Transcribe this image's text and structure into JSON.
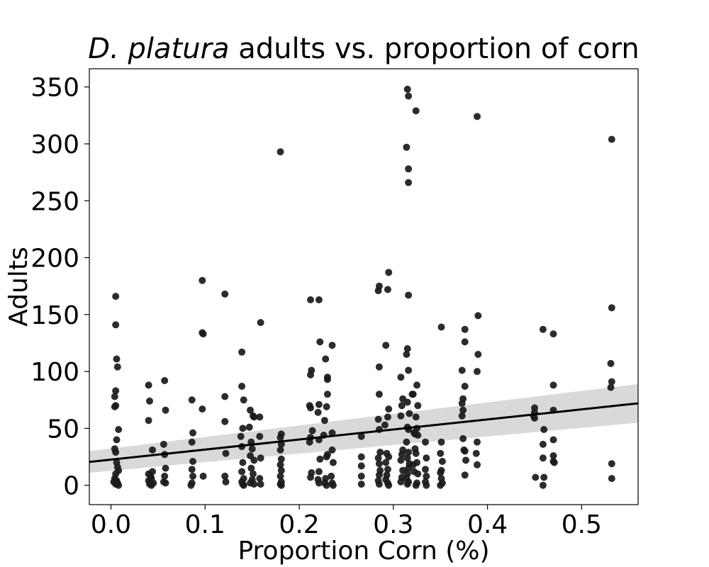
{
  "chart_data": {
    "type": "scatter",
    "title": {
      "species": "D. platura",
      "rest": " adults vs. proportion of corn"
    },
    "xlabel": "Proportion Corn (%)",
    "ylabel": "Adults",
    "xlim": [
      -0.023,
      0.56
    ],
    "ylim": [
      -17,
      366
    ],
    "xticks": [
      0.0,
      0.1,
      0.2,
      0.3,
      0.4,
      0.5
    ],
    "xtick_labels": [
      "0.0",
      "0.1",
      "0.2",
      "0.3",
      "0.4",
      "0.5"
    ],
    "yticks": [
      0,
      50,
      100,
      150,
      200,
      250,
      300,
      350
    ],
    "ytick_labels": [
      "0",
      "50",
      "100",
      "150",
      "200",
      "250",
      "300",
      "350"
    ],
    "grid": false,
    "regression": {
      "x": [
        -0.023,
        0.56
      ],
      "y": [
        20.5,
        72
      ],
      "ci_lower": [
        11,
        55
      ],
      "ci_upper": [
        30,
        89
      ]
    },
    "colors": {
      "points": "#1a1a1a",
      "line": "#000000",
      "band": "#d9d9d9"
    },
    "points": [
      [
        0.005,
        166
      ],
      [
        0.005,
        141
      ],
      [
        0.006,
        111
      ],
      [
        0.007,
        104
      ],
      [
        0.008,
        49
      ],
      [
        0.005,
        83
      ],
      [
        0.004,
        78
      ],
      [
        0.005,
        70
      ],
      [
        0.004,
        69
      ],
      [
        0.006,
        40
      ],
      [
        0.004,
        32
      ],
      [
        0.005,
        29
      ],
      [
        0.006,
        20
      ],
      [
        0.007,
        16
      ],
      [
        0.008,
        13
      ],
      [
        0.005,
        10
      ],
      [
        0.004,
        6
      ],
      [
        0.006,
        4
      ],
      [
        0.007,
        2
      ],
      [
        0.005,
        1
      ],
      [
        0.008,
        0
      ],
      [
        0.003,
        3
      ],
      [
        0.04,
        88
      ],
      [
        0.041,
        74
      ],
      [
        0.04,
        57
      ],
      [
        0.044,
        31
      ],
      [
        0.044,
        12
      ],
      [
        0.04,
        10
      ],
      [
        0.042,
        8
      ],
      [
        0.043,
        6
      ],
      [
        0.04,
        4
      ],
      [
        0.045,
        2
      ],
      [
        0.043,
        0
      ],
      [
        0.041,
        1
      ],
      [
        0.057,
        92
      ],
      [
        0.058,
        66
      ],
      [
        0.056,
        36
      ],
      [
        0.057,
        27
      ],
      [
        0.058,
        15
      ],
      [
        0.057,
        8
      ],
      [
        0.056,
        3
      ],
      [
        0.058,
        2
      ],
      [
        0.086,
        75
      ],
      [
        0.087,
        46
      ],
      [
        0.086,
        38
      ],
      [
        0.087,
        21
      ],
      [
        0.086,
        14
      ],
      [
        0.087,
        8
      ],
      [
        0.086,
        2
      ],
      [
        0.085,
        0
      ],
      [
        0.097,
        180
      ],
      [
        0.097,
        134
      ],
      [
        0.098,
        133
      ],
      [
        0.097,
        67
      ],
      [
        0.098,
        8
      ],
      [
        0.121,
        168
      ],
      [
        0.121,
        78
      ],
      [
        0.121,
        56
      ],
      [
        0.122,
        28
      ],
      [
        0.121,
        8
      ],
      [
        0.122,
        3
      ],
      [
        0.139,
        117
      ],
      [
        0.139,
        87
      ],
      [
        0.141,
        75
      ],
      [
        0.14,
        50
      ],
      [
        0.138,
        43
      ],
      [
        0.139,
        34
      ],
      [
        0.14,
        20
      ],
      [
        0.139,
        12
      ],
      [
        0.141,
        6
      ],
      [
        0.139,
        3
      ],
      [
        0.14,
        1
      ],
      [
        0.141,
        0
      ],
      [
        0.148,
        66
      ],
      [
        0.151,
        61
      ],
      [
        0.152,
        60
      ],
      [
        0.147,
        51
      ],
      [
        0.149,
        38
      ],
      [
        0.15,
        32
      ],
      [
        0.148,
        26
      ],
      [
        0.152,
        22
      ],
      [
        0.149,
        15
      ],
      [
        0.151,
        10
      ],
      [
        0.15,
        5
      ],
      [
        0.148,
        2
      ],
      [
        0.152,
        1
      ],
      [
        0.159,
        143
      ],
      [
        0.158,
        60
      ],
      [
        0.158,
        43
      ],
      [
        0.159,
        24
      ],
      [
        0.158,
        6
      ],
      [
        0.159,
        1
      ],
      [
        0.18,
        293
      ],
      [
        0.181,
        45
      ],
      [
        0.18,
        42
      ],
      [
        0.181,
        36
      ],
      [
        0.18,
        31
      ],
      [
        0.181,
        23
      ],
      [
        0.18,
        18
      ],
      [
        0.181,
        13
      ],
      [
        0.18,
        8
      ],
      [
        0.181,
        3
      ],
      [
        0.18,
        1
      ],
      [
        0.181,
        0
      ],
      [
        0.212,
        163
      ],
      [
        0.213,
        101
      ],
      [
        0.212,
        97
      ],
      [
        0.211,
        70
      ],
      [
        0.212,
        68
      ],
      [
        0.214,
        48
      ],
      [
        0.212,
        42
      ],
      [
        0.211,
        38
      ],
      [
        0.213,
        11
      ],
      [
        0.212,
        7
      ],
      [
        0.221,
        163
      ],
      [
        0.222,
        126
      ],
      [
        0.221,
        71
      ],
      [
        0.22,
        64
      ],
      [
        0.221,
        40
      ],
      [
        0.222,
        23
      ],
      [
        0.221,
        12
      ],
      [
        0.22,
        5
      ],
      [
        0.221,
        2
      ],
      [
        0.228,
        111
      ],
      [
        0.23,
        95
      ],
      [
        0.23,
        93
      ],
      [
        0.23,
        80
      ],
      [
        0.229,
        69
      ],
      [
        0.227,
        57
      ],
      [
        0.226,
        44
      ],
      [
        0.23,
        27
      ],
      [
        0.229,
        25
      ],
      [
        0.228,
        6
      ],
      [
        0.227,
        2
      ],
      [
        0.229,
        0
      ],
      [
        0.235,
        123
      ],
      [
        0.235,
        46
      ],
      [
        0.235,
        31
      ],
      [
        0.236,
        20
      ],
      [
        0.234,
        8
      ],
      [
        0.235,
        2
      ],
      [
        0.236,
        0
      ],
      [
        0.266,
        43
      ],
      [
        0.266,
        25
      ],
      [
        0.266,
        17
      ],
      [
        0.266,
        8
      ],
      [
        0.266,
        1
      ],
      [
        0.285,
        175
      ],
      [
        0.284,
        171
      ],
      [
        0.285,
        104
      ],
      [
        0.285,
        80
      ],
      [
        0.284,
        58
      ],
      [
        0.285,
        49
      ],
      [
        0.286,
        29
      ],
      [
        0.284,
        24
      ],
      [
        0.285,
        19
      ],
      [
        0.286,
        13
      ],
      [
        0.285,
        9
      ],
      [
        0.284,
        4
      ],
      [
        0.285,
        1
      ],
      [
        0.292,
        123
      ],
      [
        0.295,
        187
      ],
      [
        0.294,
        172
      ],
      [
        0.295,
        67
      ],
      [
        0.294,
        60
      ],
      [
        0.291,
        53
      ],
      [
        0.293,
        28
      ],
      [
        0.295,
        25
      ],
      [
        0.292,
        20
      ],
      [
        0.294,
        14
      ],
      [
        0.293,
        9
      ],
      [
        0.292,
        5
      ],
      [
        0.294,
        2
      ],
      [
        0.295,
        0
      ],
      [
        0.308,
        95
      ],
      [
        0.31,
        76
      ],
      [
        0.309,
        70
      ],
      [
        0.308,
        61
      ],
      [
        0.31,
        31
      ],
      [
        0.309,
        27
      ],
      [
        0.308,
        22
      ],
      [
        0.31,
        13
      ],
      [
        0.309,
        7
      ],
      [
        0.308,
        3
      ],
      [
        0.315,
        348
      ],
      [
        0.316,
        342
      ],
      [
        0.314,
        297
      ],
      [
        0.316,
        278
      ],
      [
        0.316,
        266
      ],
      [
        0.316,
        167
      ],
      [
        0.315,
        120
      ],
      [
        0.314,
        115
      ],
      [
        0.316,
        101
      ],
      [
        0.315,
        73
      ],
      [
        0.317,
        63
      ],
      [
        0.315,
        51
      ],
      [
        0.316,
        49
      ],
      [
        0.314,
        38
      ],
      [
        0.316,
        29
      ],
      [
        0.315,
        24
      ],
      [
        0.317,
        19
      ],
      [
        0.316,
        15
      ],
      [
        0.315,
        10
      ],
      [
        0.314,
        6
      ],
      [
        0.316,
        3
      ],
      [
        0.315,
        1
      ],
      [
        0.32,
        80
      ],
      [
        0.321,
        80
      ],
      [
        0.322,
        46
      ],
      [
        0.323,
        32
      ],
      [
        0.321,
        18
      ],
      [
        0.322,
        12
      ],
      [
        0.324,
        329
      ],
      [
        0.325,
        88
      ],
      [
        0.326,
        70
      ],
      [
        0.324,
        60
      ],
      [
        0.325,
        50
      ],
      [
        0.323,
        45
      ],
      [
        0.326,
        44
      ],
      [
        0.324,
        28
      ],
      [
        0.325,
        20
      ],
      [
        0.326,
        10
      ],
      [
        0.325,
        2
      ],
      [
        0.324,
        0
      ],
      [
        0.334,
        38
      ],
      [
        0.335,
        24
      ],
      [
        0.334,
        14
      ],
      [
        0.335,
        8
      ],
      [
        0.334,
        3
      ],
      [
        0.335,
        0
      ],
      [
        0.351,
        139
      ],
      [
        0.351,
        38
      ],
      [
        0.35,
        28
      ],
      [
        0.352,
        21
      ],
      [
        0.351,
        13
      ],
      [
        0.35,
        11
      ],
      [
        0.351,
        6
      ],
      [
        0.352,
        2
      ],
      [
        0.35,
        0
      ],
      [
        0.373,
        101
      ],
      [
        0.374,
        76
      ],
      [
        0.373,
        72
      ],
      [
        0.374,
        66
      ],
      [
        0.373,
        61
      ],
      [
        0.374,
        41
      ],
      [
        0.375,
        31
      ],
      [
        0.376,
        30
      ],
      [
        0.376,
        137
      ],
      [
        0.376,
        126
      ],
      [
        0.376,
        87
      ],
      [
        0.377,
        22
      ],
      [
        0.376,
        9
      ],
      [
        0.389,
        324
      ],
      [
        0.39,
        149
      ],
      [
        0.39,
        115
      ],
      [
        0.389,
        100
      ],
      [
        0.389,
        38
      ],
      [
        0.388,
        28
      ],
      [
        0.389,
        18
      ],
      [
        0.45,
        68
      ],
      [
        0.45,
        64
      ],
      [
        0.449,
        61
      ],
      [
        0.45,
        59
      ],
      [
        0.451,
        7
      ],
      [
        0.459,
        137
      ],
      [
        0.46,
        49
      ],
      [
        0.459,
        36
      ],
      [
        0.459,
        24
      ],
      [
        0.46,
        7
      ],
      [
        0.459,
        0
      ],
      [
        0.47,
        133
      ],
      [
        0.47,
        88
      ],
      [
        0.47,
        66
      ],
      [
        0.47,
        40
      ],
      [
        0.47,
        26
      ],
      [
        0.47,
        21
      ],
      [
        0.471,
        20
      ],
      [
        0.532,
        304
      ],
      [
        0.532,
        156
      ],
      [
        0.531,
        107
      ],
      [
        0.532,
        91
      ],
      [
        0.531,
        86
      ],
      [
        0.532,
        19
      ],
      [
        0.532,
        6
      ]
    ]
  }
}
